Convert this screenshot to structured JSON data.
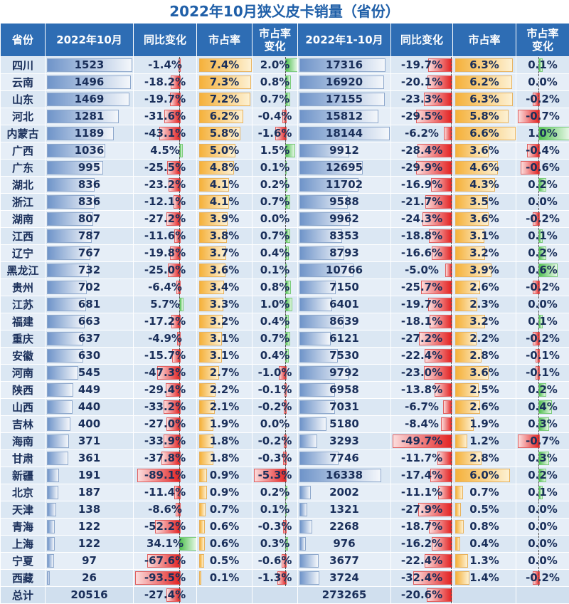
{
  "title": "2022年10月狭义皮卡销量（省份）",
  "headers": [
    "省份",
    "2022年10月",
    "同比变化",
    "市占率",
    "市占率\n变化",
    "2022年1-10月",
    "同比变化",
    "市占率",
    "市占率\n变化"
  ],
  "colors": {
    "header_bg": "#2e6db4",
    "volume_bar": "#6f94c9",
    "share_bar": "#f5b13b",
    "positive_bar": "#51c051",
    "negative_bar": "#e32222"
  },
  "chart_data": {
    "type": "table",
    "title": "2022年10月狭义皮卡销量（省份）",
    "columns": [
      "省份",
      "2022年10月",
      "同比变化",
      "市占率",
      "市占率变化",
      "2022年1-10月",
      "同比变化",
      "市占率",
      "市占率变化"
    ],
    "rows": [
      [
        "四川",
        "1523",
        "-1.4%",
        "7.4%",
        "2.0%",
        "17316",
        "-19.7%",
        "6.3%",
        "0.1%"
      ],
      [
        "云南",
        "1496",
        "-18.2%",
        "7.3%",
        "0.8%",
        "16920",
        "-20.1%",
        "6.2%",
        "0.0%"
      ],
      [
        "山东",
        "1469",
        "-19.7%",
        "7.2%",
        "0.7%",
        "17155",
        "-23.3%",
        "6.3%",
        "-0.2%"
      ],
      [
        "河北",
        "1281",
        "-31.6%",
        "6.2%",
        "-0.4%",
        "15812",
        "-29.5%",
        "5.8%",
        "-0.7%"
      ],
      [
        "内蒙古",
        "1189",
        "-43.1%",
        "5.8%",
        "-1.6%",
        "18144",
        "-6.2%",
        "6.6%",
        "1.0%"
      ],
      [
        "广西",
        "1036",
        "4.5%",
        "5.0%",
        "1.5%",
        "9912",
        "-28.4%",
        "3.6%",
        "-0.4%"
      ],
      [
        "广东",
        "995",
        "-25.5%",
        "4.8%",
        "0.1%",
        "12695",
        "-29.9%",
        "4.6%",
        "-0.6%"
      ],
      [
        "湖北",
        "836",
        "-23.2%",
        "4.1%",
        "0.2%",
        "11702",
        "-16.9%",
        "4.3%",
        "0.2%"
      ],
      [
        "浙江",
        "836",
        "-12.1%",
        "4.1%",
        "0.7%",
        "9588",
        "-21.7%",
        "3.5%",
        "0.0%"
      ],
      [
        "湖南",
        "807",
        "-27.2%",
        "3.9%",
        "0.0%",
        "9962",
        "-24.3%",
        "3.6%",
        "-0.2%"
      ],
      [
        "江西",
        "787",
        "-11.6%",
        "3.8%",
        "0.7%",
        "8353",
        "-18.8%",
        "3.1%",
        "0.1%"
      ],
      [
        "辽宁",
        "767",
        "-19.8%",
        "3.7%",
        "0.4%",
        "8793",
        "-16.6%",
        "3.2%",
        "0.2%"
      ],
      [
        "黑龙江",
        "732",
        "-25.0%",
        "3.6%",
        "0.1%",
        "10766",
        "-5.0%",
        "3.9%",
        "0.6%"
      ],
      [
        "贵州",
        "702",
        "-6.4%",
        "3.4%",
        "0.8%",
        "7150",
        "-25.7%",
        "2.6%",
        "-0.2%"
      ],
      [
        "江苏",
        "681",
        "5.7%",
        "3.3%",
        "1.0%",
        "6401",
        "-19.7%",
        "2.3%",
        "0.0%"
      ],
      [
        "福建",
        "663",
        "-17.2%",
        "3.2%",
        "0.4%",
        "8639",
        "-18.1%",
        "3.2%",
        "0.1%"
      ],
      [
        "重庆",
        "637",
        "-4.9%",
        "3.1%",
        "0.7%",
        "6121",
        "-27.2%",
        "2.2%",
        "-0.2%"
      ],
      [
        "安徽",
        "630",
        "-15.7%",
        "3.1%",
        "0.4%",
        "7530",
        "-22.4%",
        "2.8%",
        "-0.1%"
      ],
      [
        "河南",
        "545",
        "-47.3%",
        "2.7%",
        "-1.0%",
        "9792",
        "-23.0%",
        "3.6%",
        "-0.1%"
      ],
      [
        "陕西",
        "449",
        "-29.4%",
        "2.2%",
        "-0.1%",
        "6958",
        "-13.8%",
        "2.5%",
        "0.2%"
      ],
      [
        "山西",
        "440",
        "-33.2%",
        "2.1%",
        "-0.2%",
        "7031",
        "-6.7%",
        "2.6%",
        "0.4%"
      ],
      [
        "吉林",
        "400",
        "-27.0%",
        "1.9%",
        "0.0%",
        "5180",
        "-8.4%",
        "1.9%",
        "0.3%"
      ],
      [
        "海南",
        "371",
        "-33.9%",
        "1.8%",
        "-0.2%",
        "3293",
        "-49.7%",
        "1.2%",
        "-0.7%"
      ],
      [
        "甘肃",
        "361",
        "-37.8%",
        "1.8%",
        "-0.3%",
        "7746",
        "-11.7%",
        "2.8%",
        "0.3%"
      ],
      [
        "新疆",
        "191",
        "-89.1%",
        "0.9%",
        "-5.3%",
        "16338",
        "-17.4%",
        "6.0%",
        "0.2%"
      ],
      [
        "北京",
        "187",
        "-11.4%",
        "0.9%",
        "0.2%",
        "2002",
        "-11.1%",
        "0.7%",
        "0.1%"
      ],
      [
        "天津",
        "138",
        "-8.6%",
        "0.7%",
        "0.1%",
        "1321",
        "-27.9%",
        "0.5%",
        "0.0%"
      ],
      [
        "青海",
        "122",
        "-52.2%",
        "0.6%",
        "-0.3%",
        "2268",
        "-18.7%",
        "0.8%",
        "0.0%"
      ],
      [
        "上海",
        "122",
        "34.1%",
        "0.6%",
        "0.3%",
        "976",
        "-16.2%",
        "0.4%",
        "0.0%"
      ],
      [
        "宁夏",
        "97",
        "-67.6%",
        "0.5%",
        "-0.6%",
        "3677",
        "-22.4%",
        "1.3%",
        "0.0%"
      ],
      [
        "西藏",
        "26",
        "-93.5%",
        "0.1%",
        "-1.3%",
        "3724",
        "-32.4%",
        "1.4%",
        "-0.2%"
      ]
    ],
    "total": [
      "总计",
      "20516",
      "-27.4%",
      "",
      "",
      "273265",
      "-20.6%",
      "",
      ""
    ]
  }
}
